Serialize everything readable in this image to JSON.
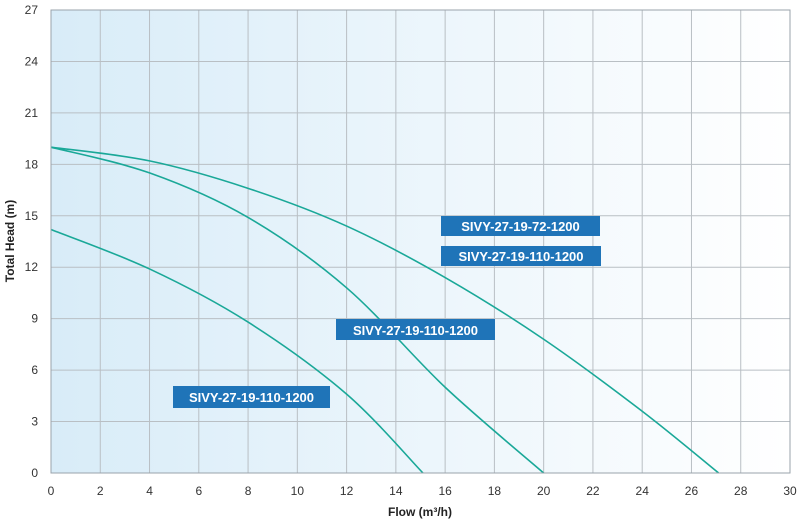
{
  "chart_data": {
    "type": "line",
    "title": "",
    "xlabel": "Flow (m³/h)",
    "ylabel": "Total Head (m)",
    "xlim": [
      0,
      30
    ],
    "ylim": [
      0,
      27
    ],
    "xticks": [
      "0",
      "2",
      "4",
      "6",
      "8",
      "10",
      "12",
      "14",
      "16",
      "18",
      "20",
      "22",
      "24",
      "26",
      "28",
      "30"
    ],
    "yticks": [
      "0",
      "3",
      "6",
      "9",
      "12",
      "15",
      "18",
      "21",
      "24",
      "27"
    ],
    "grid": true,
    "series": [
      {
        "name": "SIVY-27-19-72-1200",
        "x": [
          0,
          4,
          8,
          12,
          16,
          20,
          24,
          27.1
        ],
        "y": [
          19.0,
          18.2,
          16.6,
          14.4,
          11.4,
          7.8,
          3.6,
          0
        ]
      },
      {
        "name": "SIVY-27-19-110-1200",
        "x": [
          0,
          4,
          8,
          12,
          16,
          20
        ],
        "y": [
          19.0,
          17.5,
          14.9,
          10.8,
          5.0,
          0
        ]
      },
      {
        "name": "SIVY-27-19-110-1200",
        "x": [
          0,
          4,
          8,
          12,
          15.1
        ],
        "y": [
          14.2,
          11.9,
          8.8,
          4.6,
          0
        ]
      }
    ],
    "labels": [
      {
        "text": "SIVY-27-19-72-1200"
      },
      {
        "text": "SIVY-27-19-110-1200"
      },
      {
        "text": "SIVY-27-19-110-1200"
      },
      {
        "text": "SIVY-27-19-110-1200"
      }
    ],
    "colors": {
      "curve": "#1aa898",
      "label_bg": "#1f74b8",
      "label_text": "#ffffff",
      "grid": "#b9bfc4",
      "bg_left": "#d8ecf8",
      "bg_right": "#ffffff"
    }
  }
}
